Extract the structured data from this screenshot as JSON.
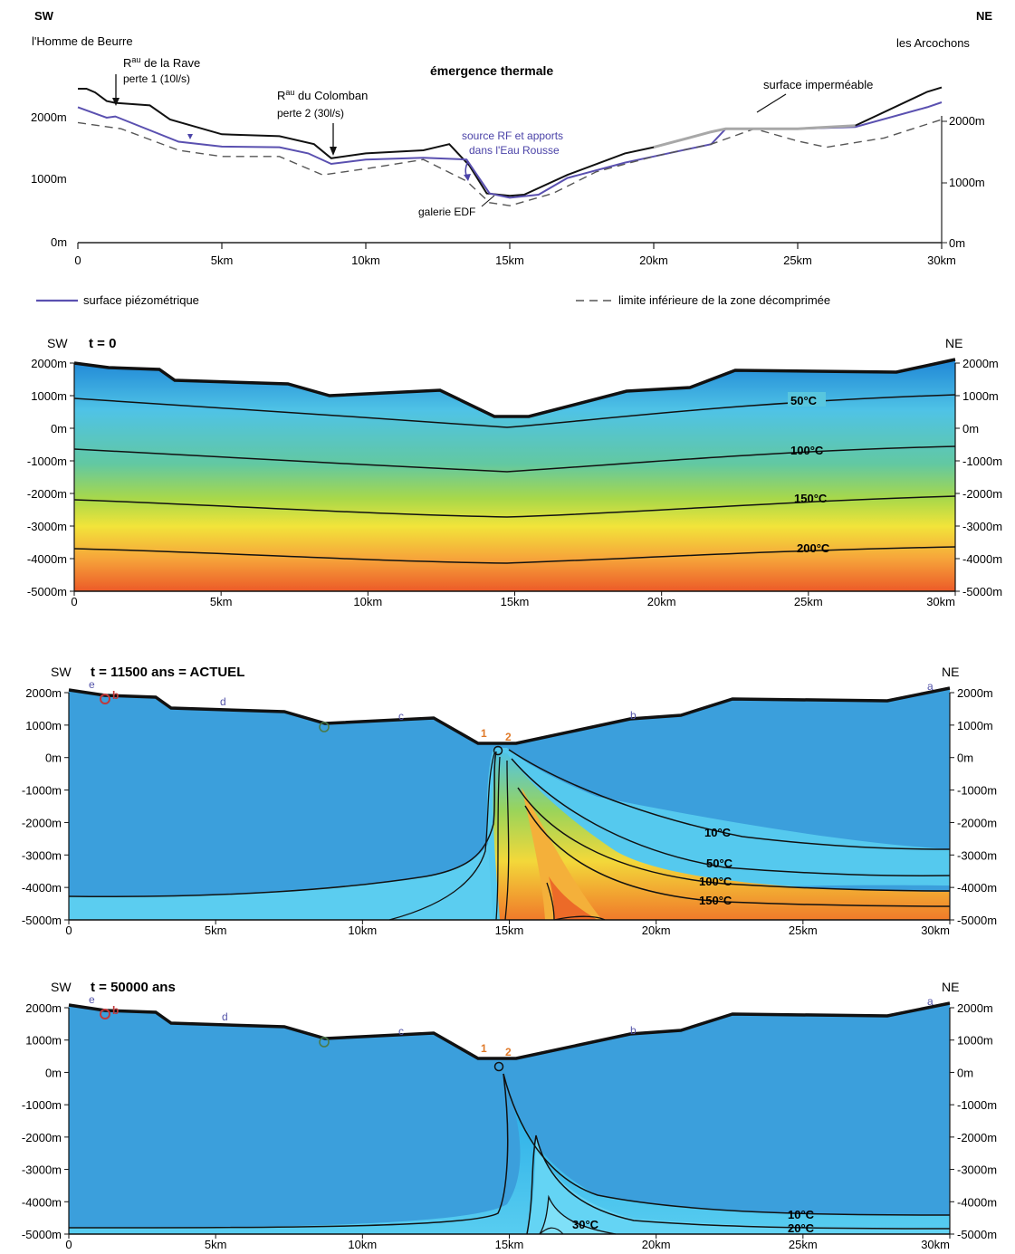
{
  "top_panel": {
    "sw_label": "SW",
    "ne_label": "NE",
    "left_place": "l'Homme de Beurre",
    "right_place": "les Arcochons",
    "title": "émergence thermale",
    "ann_rave_1": "R",
    "ann_rave_sup": "au",
    "ann_rave_2": " de la Rave",
    "ann_rave_3": "perte 1 (10l/s)",
    "ann_col_1": "R",
    "ann_col_sup": "au",
    "ann_col_2": " du Colomban",
    "ann_col_3": "perte 2 (30l/s)",
    "ann_source_1": "source RF et apports",
    "ann_source_2": "dans l'Eau Rousse",
    "ann_surface": "surface imperméable",
    "ann_galerie": "galerie EDF",
    "y_ticks_left": [
      "2000m",
      "1000m",
      "0m"
    ],
    "y_ticks_right": [
      "2000m",
      "1000m",
      "0m"
    ],
    "x_ticks": [
      "0",
      "5km",
      "10km",
      "15km",
      "20km",
      "25km",
      "30km"
    ],
    "legend_piezo": "surface piézométrique",
    "legend_limit": "limite inférieure de la zone décomprimée",
    "colors": {
      "topography": "#111111",
      "piezometric": "#5a50b0",
      "impermeable": "#a8a8a8",
      "limit": "#555555"
    }
  },
  "panels": [
    {
      "sw": "SW",
      "ne": "NE",
      "time": "t = 0",
      "isotherm_labels": [
        "50°C",
        "100°C",
        "150°C",
        "200°C"
      ],
      "point_labels": []
    },
    {
      "sw": "SW",
      "ne": "NE",
      "time": "t = 11500 ans  = ACTUEL",
      "isotherm_labels": [
        "10°C",
        "50°C",
        "100°C",
        "150°C"
      ],
      "point_labels": [
        "e",
        "b",
        "d",
        "c",
        "1",
        "2",
        "b",
        "a"
      ]
    },
    {
      "sw": "SW",
      "ne": "NE",
      "time": "t = 50000 ans",
      "isotherm_labels": [
        "10°C",
        "20°C",
        "30°C"
      ],
      "point_labels": [
        "e",
        "b",
        "d",
        "c",
        "1",
        "2",
        "b",
        "a"
      ]
    }
  ],
  "section_y_ticks": [
    "2000m",
    "1000m",
    "0m",
    "-1000m",
    "-2000m",
    "-3000m",
    "-4000m",
    "-5000m"
  ],
  "section_x_ticks": [
    "0",
    "5km",
    "10km",
    "15km",
    "20km",
    "25km",
    "30km"
  ],
  "chart_data": {
    "type": "line",
    "title": "émergence thermale",
    "x_unit": "km",
    "y_unit": "m",
    "xlim": [
      0,
      30
    ],
    "ylim": [
      0,
      2500
    ],
    "series": [
      {
        "name": "",
        "x": [
          0,
          0.3,
          0.6,
          1.0,
          1.3,
          2.5,
          3.2,
          5.0,
          7.0,
          8.2,
          8.8,
          10.0,
          12.0,
          12.9,
          13.6,
          14.2,
          15.0,
          15.5,
          17.0,
          19.0,
          20.0,
          22.0,
          22.5,
          25.0,
          27.0,
          29.5,
          30.0
        ],
        "y": [
          2500,
          2500,
          2440,
          2300,
          2270,
          2230,
          2000,
          1760,
          1730,
          1600,
          1370,
          1450,
          1500,
          1600,
          1250,
          800,
          760,
          780,
          1100,
          1450,
          1550,
          1800,
          1850,
          1850,
          1900,
          2450,
          2520
        ]
      },
      {
        "name": "surface piézométrique",
        "x": [
          0,
          1.0,
          1.3,
          3.5,
          5.0,
          7.0,
          8.0,
          8.8,
          10.0,
          12.0,
          13.5,
          14.3,
          15.0,
          16.0,
          17.0,
          19.0,
          20.0,
          22.0,
          22.5,
          25.0,
          27.0,
          29.5,
          30.0
        ],
        "y": [
          2200,
          2030,
          2050,
          1640,
          1560,
          1550,
          1450,
          1280,
          1350,
          1380,
          1350,
          800,
          730,
          780,
          1050,
          1300,
          1400,
          1600,
          1850,
          1850,
          1880,
          2200,
          2280
        ]
      },
      {
        "name": "limite inférieure de la zone décomprimée",
        "x": [
          0,
          1.5,
          3.5,
          5.0,
          7.0,
          8.5,
          10.0,
          12.0,
          13.5,
          14.3,
          15.0,
          16.5,
          18.0,
          20.0,
          22.0,
          23.5,
          25.0,
          26.0,
          28.0,
          30.0
        ],
        "y": [
          1950,
          1850,
          1500,
          1400,
          1400,
          1100,
          1200,
          1350,
          1000,
          650,
          600,
          800,
          1150,
          1400,
          1600,
          1850,
          1650,
          1550,
          1700,
          2000
        ]
      }
    ],
    "annotations": [
      "R au de la Rave perte 1 (10l/s)",
      "R au du Colomban perte 2 (30l/s)",
      "source RF et apports dans l'Eau Rousse",
      "surface imperméable",
      "galerie EDF"
    ]
  }
}
